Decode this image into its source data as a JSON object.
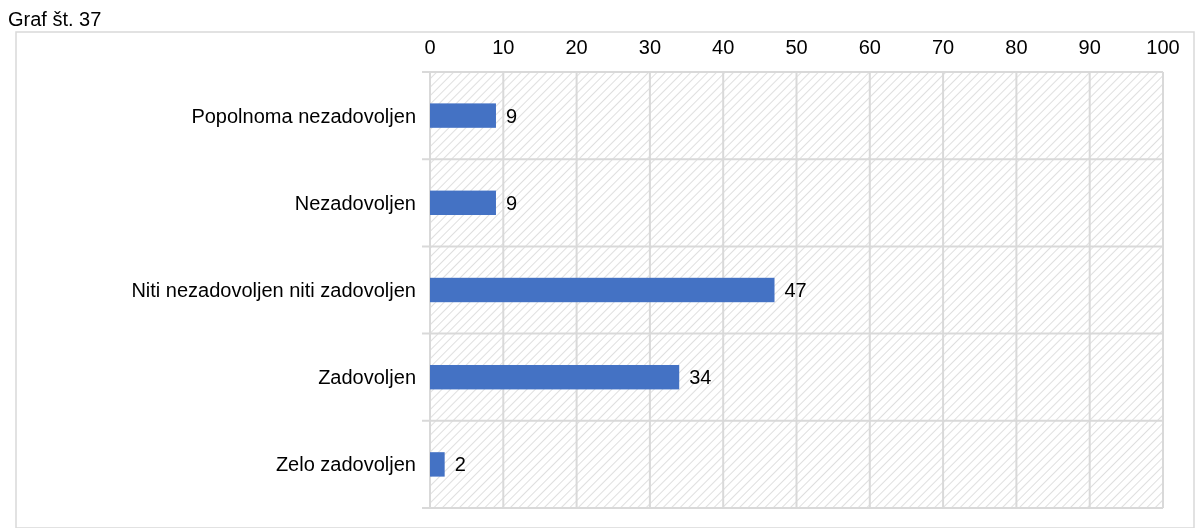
{
  "chart_data": {
    "type": "bar",
    "orientation": "horizontal",
    "title": "Graf št. 37",
    "categories": [
      "Popolnoma nezadovoljen",
      "Nezadovoljen",
      "Niti nezadovoljen niti zadovoljen",
      "Zadovoljen",
      "Zelo zadovoljen"
    ],
    "values": [
      9,
      9,
      47,
      34,
      2
    ],
    "color": "#4472c4",
    "xlim": [
      0,
      100
    ],
    "xticks": [
      0,
      10,
      20,
      30,
      40,
      50,
      60,
      70,
      80,
      90,
      100
    ],
    "grid": true,
    "data_labels": true
  }
}
